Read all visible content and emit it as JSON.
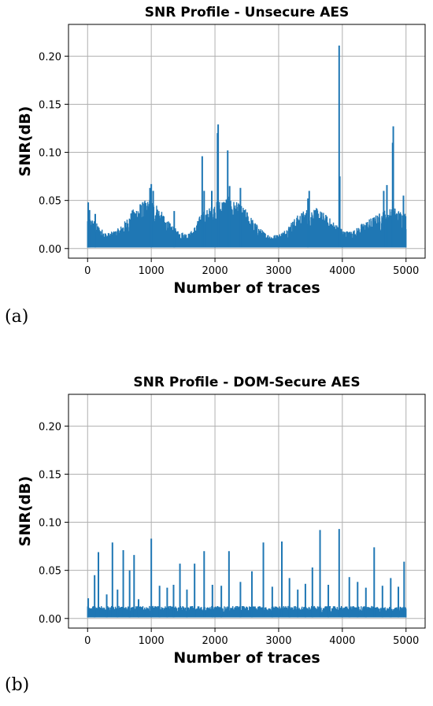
{
  "chart_data": [
    {
      "type": "line",
      "panel_label": "(a)",
      "title": "SNR Profile - Unsecure AES",
      "xlabel": "Number of traces",
      "ylabel": "SNR(dB)",
      "xlim": [
        -300,
        5300
      ],
      "ylim": [
        -0.01,
        0.233
      ],
      "xticks": [
        0,
        1000,
        2000,
        3000,
        4000,
        5000
      ],
      "xtick_labels": [
        "0",
        "1000",
        "2000",
        "3000",
        "4000",
        "5000"
      ],
      "yticks": [
        0.0,
        0.05,
        0.1,
        0.15,
        0.2
      ],
      "ytick_labels": [
        "0.00",
        "0.05",
        "0.10",
        "0.15",
        "0.20"
      ],
      "grid": true,
      "color": "#1f77b4",
      "series": [
        {
          "envelope_x": [
            0,
            100,
            200,
            300,
            400,
            500,
            600,
            700,
            800,
            900,
            1000,
            1100,
            1200,
            1300,
            1400,
            1500,
            1600,
            1700,
            1800,
            1900,
            2000,
            2100,
            2200,
            2300,
            2400,
            2500,
            2600,
            2700,
            2800,
            2900,
            3000,
            3100,
            3200,
            3300,
            3400,
            3500,
            3600,
            3700,
            3800,
            3900,
            4000,
            4100,
            4200,
            4300,
            4400,
            4500,
            4600,
            4700,
            4800,
            4900,
            5000
          ],
          "envelope_y": [
            0.035,
            0.03,
            0.022,
            0.016,
            0.018,
            0.022,
            0.03,
            0.04,
            0.047,
            0.05,
            0.052,
            0.046,
            0.034,
            0.026,
            0.02,
            0.017,
            0.016,
            0.025,
            0.04,
            0.042,
            0.048,
            0.052,
            0.055,
            0.05,
            0.046,
            0.04,
            0.03,
            0.022,
            0.016,
            0.014,
            0.015,
            0.02,
            0.028,
            0.035,
            0.04,
            0.044,
            0.042,
            0.038,
            0.032,
            0.026,
            0.02,
            0.018,
            0.02,
            0.026,
            0.03,
            0.034,
            0.038,
            0.042,
            0.044,
            0.04,
            0.038
          ],
          "peaks_x": [
            10,
            30,
            120,
            980,
            1000,
            1030,
            1360,
            1800,
            1830,
            1950,
            2040,
            2050,
            2200,
            2230,
            2400,
            3460,
            3480,
            3950,
            3960,
            4650,
            4700,
            4790,
            4800,
            4960
          ],
          "peaks_y": [
            0.048,
            0.04,
            0.036,
            0.063,
            0.067,
            0.06,
            0.039,
            0.096,
            0.06,
            0.06,
            0.12,
            0.129,
            0.102,
            0.065,
            0.063,
            0.052,
            0.06,
            0.211,
            0.075,
            0.06,
            0.066,
            0.11,
            0.127,
            0.055
          ],
          "floor": 0.001
        }
      ]
    },
    {
      "type": "line",
      "panel_label": "(b)",
      "title": "SNR Profile - DOM-Secure AES",
      "xlabel": "Number of traces",
      "ylabel": "SNR(dB)",
      "xlim": [
        -300,
        5300
      ],
      "ylim": [
        -0.01,
        0.233
      ],
      "xticks": [
        0,
        1000,
        2000,
        3000,
        4000,
        5000
      ],
      "xtick_labels": [
        "0",
        "1000",
        "2000",
        "3000",
        "4000",
        "5000"
      ],
      "yticks": [
        0.0,
        0.05,
        0.1,
        0.15,
        0.2
      ],
      "ytick_labels": [
        "0.00",
        "0.05",
        "0.10",
        "0.15",
        "0.20"
      ],
      "grid": true,
      "color": "#1f77b4",
      "series": [
        {
          "envelope_x": [
            0,
            500,
            1000,
            1500,
            2000,
            2500,
            3000,
            3500,
            4000,
            4500,
            5000
          ],
          "envelope_y": [
            0.013,
            0.013,
            0.013,
            0.013,
            0.013,
            0.013,
            0.013,
            0.013,
            0.013,
            0.013,
            0.012
          ],
          "peaks_x": [
            10,
            110,
            170,
            300,
            390,
            470,
            560,
            660,
            730,
            800,
            1000,
            1130,
            1250,
            1350,
            1450,
            1560,
            1680,
            1830,
            1960,
            2100,
            2220,
            2400,
            2580,
            2760,
            2900,
            3050,
            3170,
            3300,
            3420,
            3530,
            3650,
            3780,
            3950,
            4110,
            4240,
            4370,
            4500,
            4630,
            4760,
            4880,
            4970
          ],
          "peaks_y": [
            0.021,
            0.045,
            0.069,
            0.025,
            0.079,
            0.03,
            0.071,
            0.05,
            0.066,
            0.02,
            0.083,
            0.034,
            0.032,
            0.035,
            0.057,
            0.03,
            0.057,
            0.07,
            0.035,
            0.034,
            0.07,
            0.038,
            0.049,
            0.079,
            0.033,
            0.08,
            0.042,
            0.03,
            0.036,
            0.053,
            0.092,
            0.035,
            0.093,
            0.043,
            0.038,
            0.032,
            0.074,
            0.034,
            0.042,
            0.033,
            0.059
          ],
          "floor": 0.001
        }
      ]
    }
  ]
}
